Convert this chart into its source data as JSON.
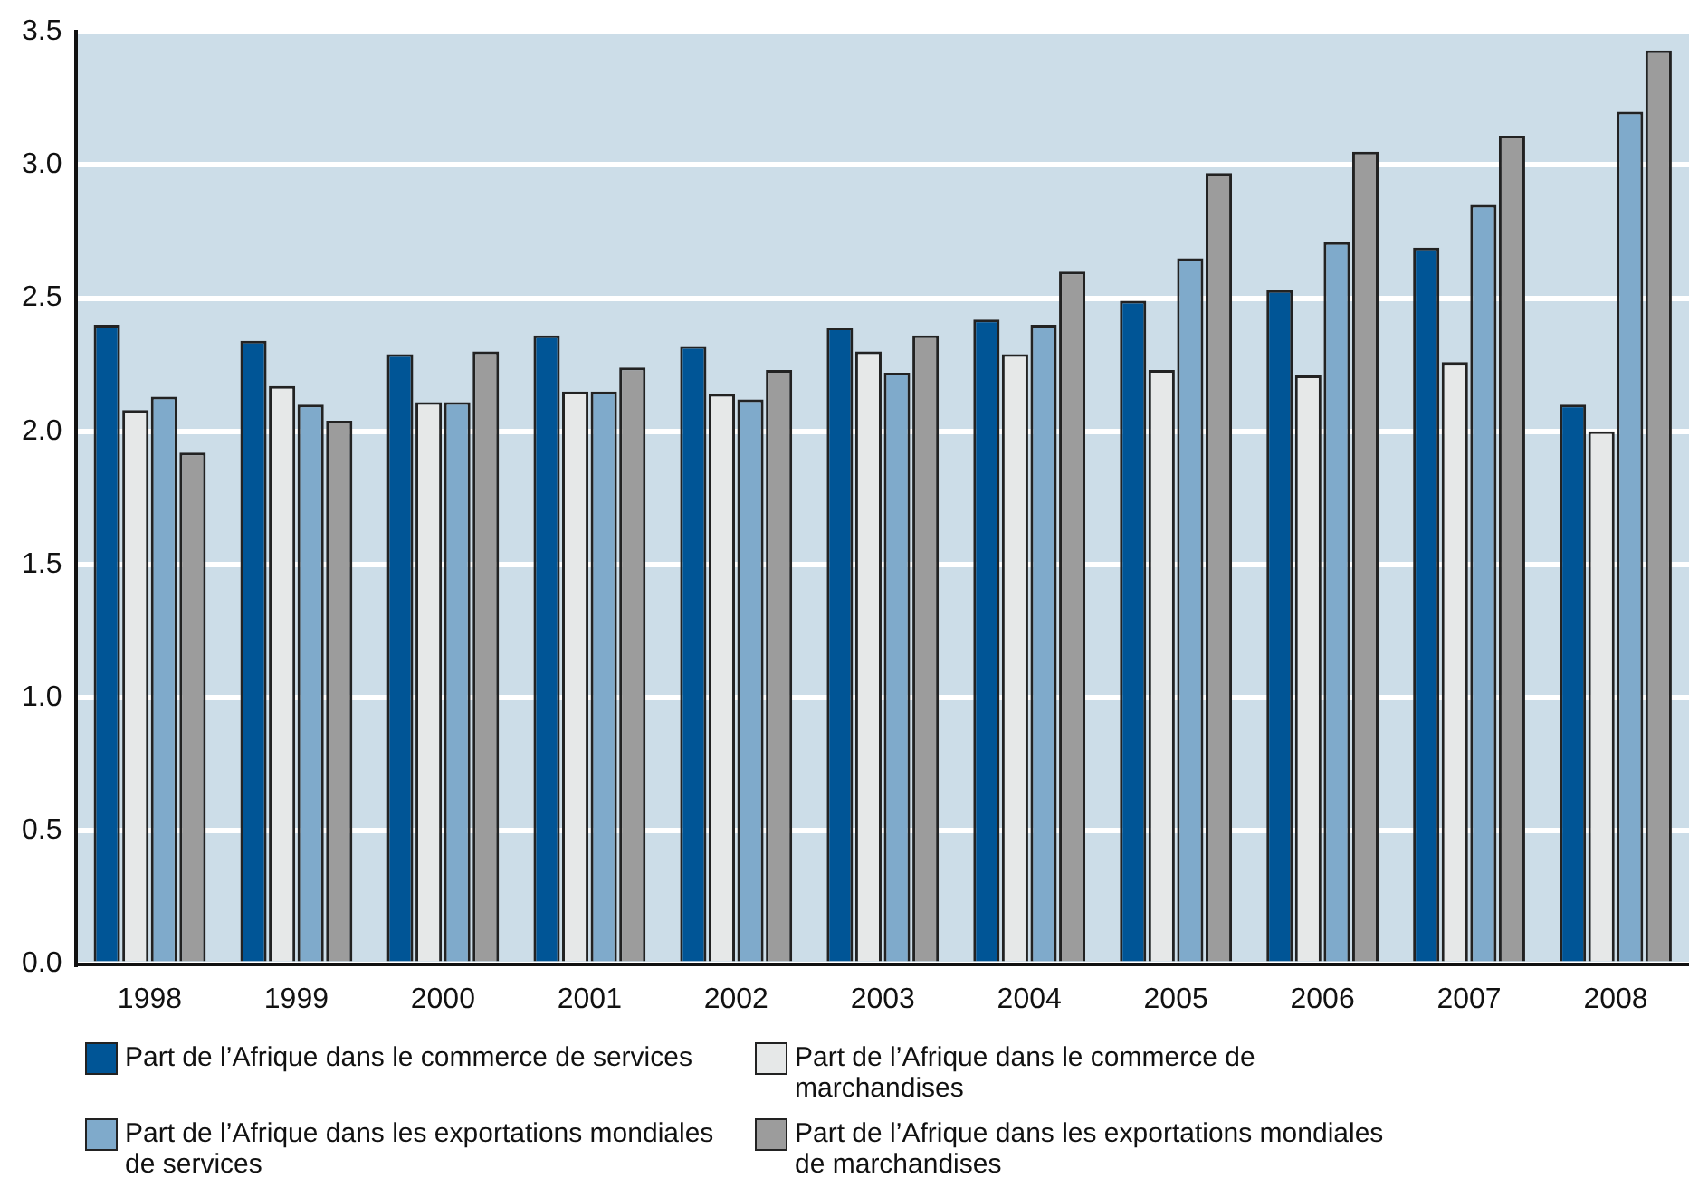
{
  "chart_data": {
    "type": "bar",
    "categories": [
      "1998",
      "1999",
      "2000",
      "2001",
      "2002",
      "2003",
      "2004",
      "2005",
      "2006",
      "2007",
      "2008"
    ],
    "series": [
      {
        "name": "Part de l’Afrique dans le commerce de services",
        "color": "#005596",
        "values": [
          2.4,
          2.34,
          2.29,
          2.36,
          2.32,
          2.39,
          2.42,
          2.49,
          2.53,
          2.69,
          2.1
        ]
      },
      {
        "name": "Part de l’Afrique dans le commerce de marchandises",
        "color": "#e6e8e8",
        "values": [
          2.08,
          2.17,
          2.11,
          2.15,
          2.14,
          2.3,
          2.29,
          2.23,
          2.21,
          2.26,
          2.0
        ]
      },
      {
        "name": "Part de l’Afrique dans les exportations mondiales de services",
        "color": "#7faacb",
        "values": [
          2.13,
          2.1,
          2.11,
          2.15,
          2.12,
          2.22,
          2.4,
          2.65,
          2.71,
          2.85,
          3.2
        ]
      },
      {
        "name": "Part de l’Afrique dans les exportations mondiales de marchandises",
        "color": "#9c9c9c",
        "values": [
          1.92,
          2.04,
          2.3,
          2.24,
          2.23,
          2.36,
          2.6,
          2.97,
          3.05,
          3.11,
          3.43
        ]
      }
    ],
    "ylim": [
      0,
      3.5
    ],
    "yticks": [
      {
        "value": 0,
        "label": "0.0"
      },
      {
        "value": 0.5,
        "label": "0.5"
      },
      {
        "value": 1,
        "label": "1.0"
      },
      {
        "value": 1.5,
        "label": "1.5"
      },
      {
        "value": 2,
        "label": "2.0"
      },
      {
        "value": 2.5,
        "label": "2.5"
      },
      {
        "value": 3,
        "label": "3.0"
      },
      {
        "value": 3.5,
        "label": "3.5"
      }
    ],
    "grid": "y",
    "legend": "bottom"
  }
}
